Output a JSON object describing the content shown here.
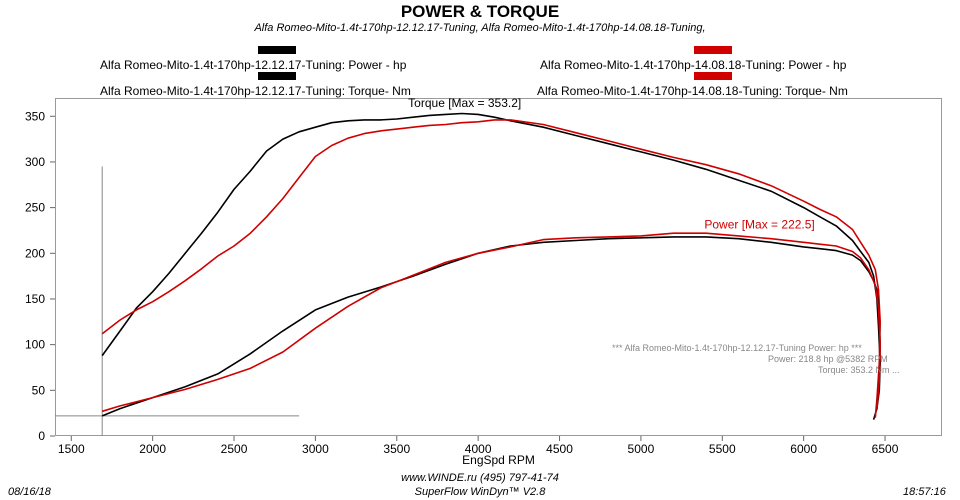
{
  "chart_data": {
    "type": "line",
    "title": "POWER & TORQUE",
    "subtitle": "Alfa Romeo-Mito-1.4t-170hp-12.12.17-Tuning, Alfa Romeo-Mito-1.4t-170hp-14.08.18-Tuning,",
    "xlabel": "EngSpd  RPM",
    "xlim": [
      1400,
      6850
    ],
    "ylim": [
      0,
      370
    ],
    "x_ticks": [
      "1500",
      "2000",
      "2500",
      "3000",
      "3500",
      "4000",
      "4500",
      "5000",
      "5500",
      "6000",
      "6500"
    ],
    "y_ticks": [
      "0",
      "50",
      "100",
      "150",
      "200",
      "250",
      "300",
      "350"
    ],
    "legend": [
      {
        "label": "Alfa Romeo-Mito-1.4t-170hp-12.12.17-Tuning: Power -  hp",
        "color": "#000000"
      },
      {
        "label": "Alfa Romeo-Mito-1.4t-170hp-12.12.17-Tuning: Torque-  Nm",
        "color": "#000000"
      },
      {
        "label": "Alfa Romeo-Mito-1.4t-170hp-14.08.18-Tuning: Power -  hp",
        "color": "#d00000"
      },
      {
        "label": "Alfa Romeo-Mito-1.4t-170hp-14.08.18-Tuning: Torque-  Nm",
        "color": "#d00000"
      }
    ],
    "annotations": {
      "torque_max": "Torque [Max = 353.2]",
      "power_max": "Power  [Max = 222.5]"
    },
    "series": [
      {
        "name": "Alfa Romeo-Mito-1.4t-170hp-12.12.17-Tuning: Torque-  Nm",
        "color": "#000000",
        "x": [
          1690,
          1800,
          1900,
          2000,
          2100,
          2200,
          2300,
          2400,
          2500,
          2600,
          2700,
          2800,
          2900,
          3000,
          3100,
          3200,
          3300,
          3400,
          3500,
          3600,
          3700,
          3800,
          3900,
          4000,
          4100,
          4200,
          4400,
          4600,
          4800,
          5000,
          5200,
          5400,
          5600,
          5800,
          6000,
          6100,
          6200,
          6300,
          6350,
          6400,
          6430,
          6450,
          6460,
          6470,
          6465,
          6450,
          6430
        ],
        "y": [
          88,
          115,
          140,
          158,
          178,
          200,
          222,
          245,
          270,
          290,
          312,
          325,
          333,
          338,
          343,
          345,
          346,
          346,
          347,
          349,
          351,
          352,
          353,
          352,
          349,
          345,
          338,
          329,
          320,
          311,
          302,
          292,
          280,
          268,
          250,
          240,
          230,
          214,
          202,
          190,
          175,
          150,
          120,
          80,
          50,
          30,
          18
        ]
      },
      {
        "name": "Alfa Romeo-Mito-1.4t-170hp-14.08.18-Tuning: Torque-  Nm",
        "color": "#d00000",
        "x": [
          1690,
          1800,
          1900,
          2000,
          2100,
          2200,
          2300,
          2400,
          2500,
          2600,
          2700,
          2800,
          2900,
          3000,
          3100,
          3200,
          3300,
          3400,
          3500,
          3600,
          3700,
          3800,
          3900,
          4000,
          4100,
          4200,
          4400,
          4600,
          4800,
          5000,
          5200,
          5400,
          5600,
          5800,
          6000,
          6100,
          6200,
          6300,
          6350,
          6400,
          6440,
          6460,
          6470,
          6465,
          6450,
          6440
        ],
        "y": [
          112,
          127,
          138,
          147,
          158,
          170,
          183,
          197,
          208,
          222,
          240,
          260,
          283,
          306,
          318,
          326,
          331,
          334,
          336,
          338,
          340,
          341,
          343,
          344,
          346,
          346,
          341,
          332,
          323,
          314,
          305,
          297,
          287,
          274,
          257,
          248,
          240,
          226,
          212,
          198,
          182,
          160,
          125,
          80,
          40,
          20
        ]
      },
      {
        "name": "Alfa Romeo-Mito-1.4t-170hp-12.12.17-Tuning: Power -  hp",
        "color": "#000000",
        "x": [
          1690,
          1800,
          2000,
          2200,
          2400,
          2600,
          2800,
          3000,
          3200,
          3400,
          3600,
          3800,
          4000,
          4200,
          4400,
          4600,
          4800,
          5000,
          5200,
          5400,
          5600,
          5800,
          6000,
          6100,
          6200,
          6300,
          6350,
          6400,
          6430,
          6450,
          6460,
          6470,
          6465,
          6450
        ],
        "y": [
          22,
          30,
          42,
          54,
          68,
          90,
          115,
          138,
          152,
          163,
          175,
          188,
          200,
          208,
          212,
          214,
          216,
          217,
          218,
          218,
          216,
          212,
          207,
          205,
          203,
          198,
          192,
          180,
          170,
          160,
          140,
          100,
          60,
          30
        ]
      },
      {
        "name": "Alfa Romeo-Mito-1.4t-170hp-14.08.18-Tuning: Power -  hp",
        "color": "#d00000",
        "x": [
          1690,
          1800,
          2000,
          2200,
          2400,
          2600,
          2800,
          3000,
          3200,
          3400,
          3600,
          3800,
          4000,
          4200,
          4400,
          4600,
          4800,
          5000,
          5200,
          5400,
          5600,
          5800,
          6000,
          6100,
          6200,
          6300,
          6350,
          6400,
          6440,
          6460,
          6470,
          6465,
          6450
        ],
        "y": [
          27,
          33,
          42,
          51,
          62,
          74,
          92,
          118,
          142,
          162,
          176,
          190,
          200,
          207,
          215,
          217,
          218,
          219,
          222,
          222,
          219,
          216,
          212,
          210,
          208,
          202,
          195,
          182,
          165,
          140,
          100,
          60,
          30
        ]
      }
    ]
  },
  "legend_left_top": "Alfa Romeo-Mito-1.4t-170hp-12.12.17-Tuning: Power -  hp",
  "legend_left_bottom": "Alfa Romeo-Mito-1.4t-170hp-12.12.17-Tuning: Torque-  Nm",
  "legend_right_top": "Alfa Romeo-Mito-1.4t-170hp-14.08.18-Tuning: Power -  hp",
  "legend_right_bottom": "Alfa Romeo-Mito-1.4t-170hp-14.08.18-Tuning: Torque-  Nm",
  "readout": {
    "line1": "*** Alfa Romeo-Mito-1.4t-170hp-12.12.17-Tuning  Power:  hp  ***",
    "line2": "Power:   218.8 hp   @5382 RPM",
    "line3": "Torque:   353.2 Nm   ..."
  },
  "footer": {
    "date": "08/16/18",
    "site": "www.WINDE.ru   (495)  797-41-74",
    "software": "SuperFlow WinDyn™  V2.8",
    "time": "18:57:16"
  }
}
